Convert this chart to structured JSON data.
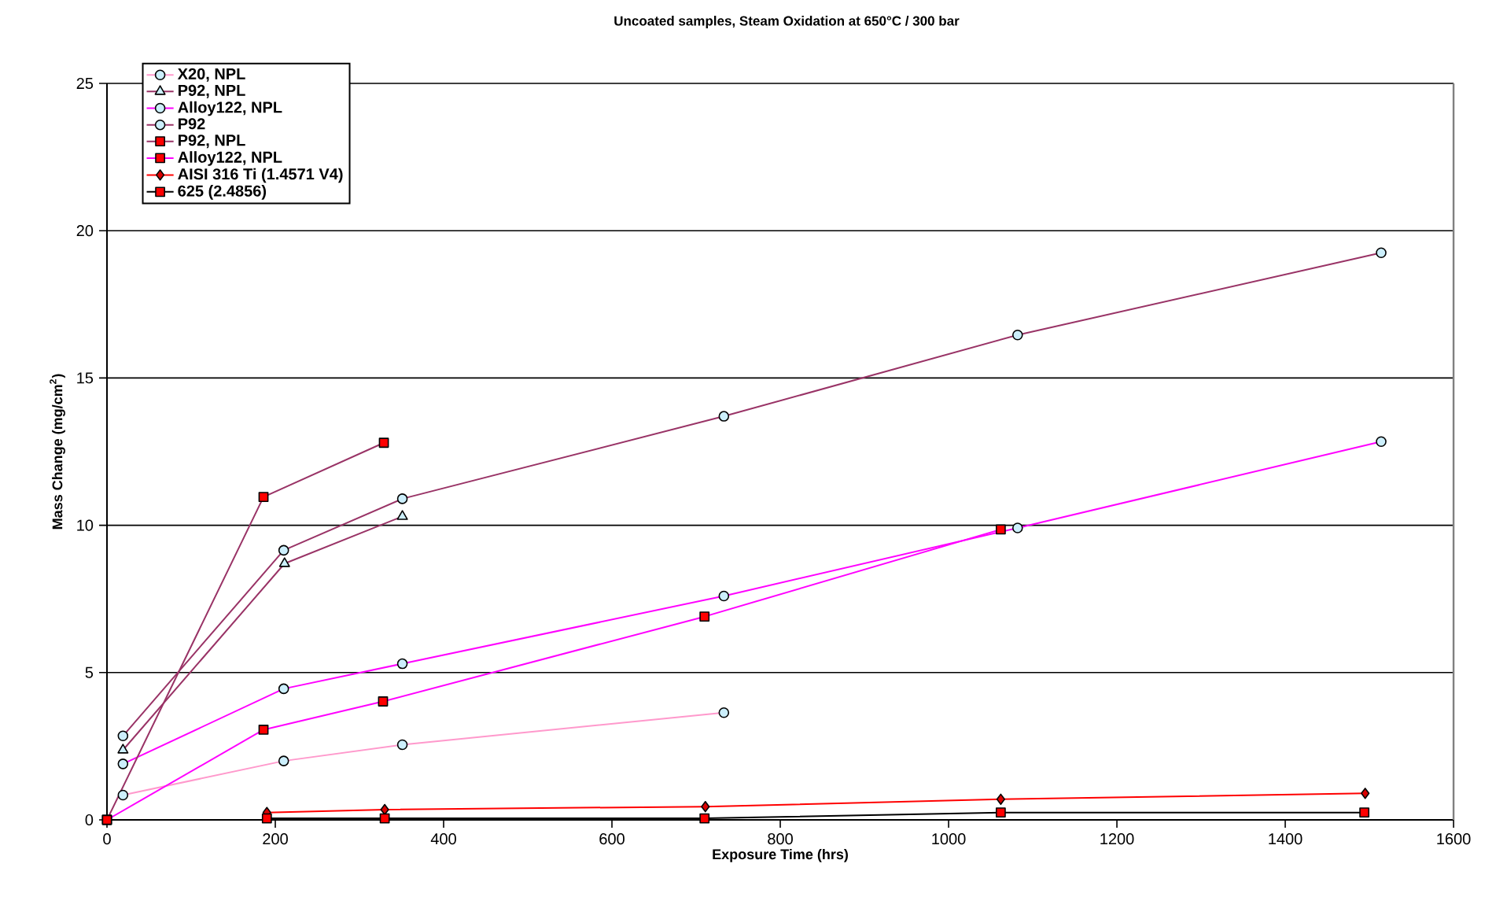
{
  "chart_data": {
    "type": "line",
    "title": "Uncoated samples, Steam Oxidation at 650°C / 300 bar",
    "xlabel": "Exposure Time (hrs)",
    "ylabel": "Mass Change (mg/cm$^{2}$)",
    "xlim": [
      0,
      1600
    ],
    "xticks": [
      0,
      200,
      400,
      600,
      800,
      1000,
      1200,
      1400,
      1600
    ],
    "ylim": [
      0,
      25
    ],
    "yticks": [
      0,
      5,
      10,
      15,
      20,
      25
    ],
    "grid": "y",
    "legend": "top left",
    "line_style": "solid",
    "series": [
      {
        "name": "X20, NPL",
        "color": "#ff99cc",
        "marker": "circle",
        "x": [
          19,
          210,
          351,
          733
        ],
        "values": [
          0.84,
          2.0,
          2.55,
          3.64
        ]
      },
      {
        "name": "P92, NPL",
        "color": "#993366",
        "marker": "triangle",
        "x": [
          19,
          211,
          351
        ],
        "values": [
          2.37,
          8.7,
          10.3
        ]
      },
      {
        "name": "Alloy122, NPL",
        "color": "#ff00ff",
        "marker": "circle",
        "x": [
          19,
          210,
          351,
          733,
          1082,
          1514
        ],
        "values": [
          1.9,
          4.45,
          5.3,
          7.6,
          9.91,
          12.84
        ]
      },
      {
        "name": "P92",
        "color": "#993366",
        "marker": "circle",
        "x": [
          19,
          210,
          351,
          733,
          1082,
          1514
        ],
        "values": [
          2.85,
          9.15,
          10.9,
          13.7,
          16.46,
          19.25
        ]
      },
      {
        "name": "P92, NPL",
        "color": "#993366",
        "marker": "square",
        "x": [
          0,
          186,
          329
        ],
        "values": [
          0,
          10.96,
          12.8
        ]
      },
      {
        "name": "Alloy122, NPL",
        "color": "#ff00ff",
        "marker": "square",
        "x": [
          0,
          186,
          328,
          710,
          1062
        ],
        "values": [
          0,
          3.06,
          4.02,
          6.9,
          9.86
        ]
      },
      {
        "name": "AISI 316 Ti (1.4571 V4)",
        "color": "#ff0000",
        "marker": "diamond",
        "x": [
          190,
          330,
          711,
          1062,
          1495
        ],
        "values": [
          0.25,
          0.35,
          0.45,
          0.7,
          0.9
        ]
      },
      {
        "name": "625 (2.4856)",
        "color": "#000000",
        "marker": "square",
        "x": [
          190,
          330,
          710,
          1062,
          1494
        ],
        "values": [
          0.05,
          0.05,
          0.05,
          0.25,
          0.25
        ]
      }
    ]
  }
}
